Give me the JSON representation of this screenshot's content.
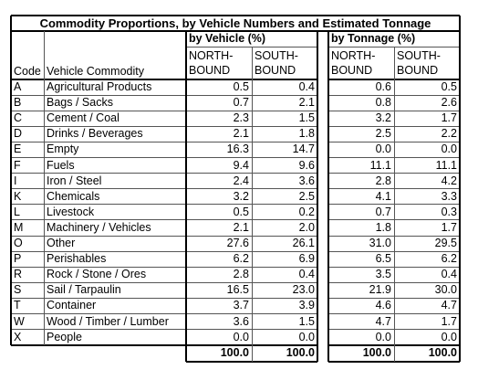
{
  "title": "Commodity Proportions, by Vehicle Numbers and Estimated Tonnage",
  "groups": {
    "vehicle": "by Vehicle (%)",
    "tonnage": "by Tonnage (%)"
  },
  "headers": {
    "code": "Code",
    "commodity": "Vehicle Commodity",
    "north_l1": "NORTH-",
    "north_l2": "BOUND",
    "south_l1": "SOUTH-",
    "south_l2": "BOUND"
  },
  "rows": [
    {
      "code": "A",
      "commodity": "Agricultural Products",
      "vn": "0.5",
      "vs": "0.4",
      "tn": "0.6",
      "ts": "0.5"
    },
    {
      "code": "B",
      "commodity": "Bags / Sacks",
      "vn": "0.7",
      "vs": "2.1",
      "tn": "0.8",
      "ts": "2.6"
    },
    {
      "code": "C",
      "commodity": "Cement / Coal",
      "vn": "2.3",
      "vs": "1.5",
      "tn": "3.2",
      "ts": "1.7"
    },
    {
      "code": "D",
      "commodity": "Drinks / Beverages",
      "vn": "2.1",
      "vs": "1.8",
      "tn": "2.5",
      "ts": "2.2"
    },
    {
      "code": "E",
      "commodity": "Empty",
      "vn": "16.3",
      "vs": "14.7",
      "tn": "0.0",
      "ts": "0.0"
    },
    {
      "code": "F",
      "commodity": "Fuels",
      "vn": "9.4",
      "vs": "9.6",
      "tn": "11.1",
      "ts": "11.1"
    },
    {
      "code": "I",
      "commodity": "Iron / Steel",
      "vn": "2.4",
      "vs": "3.6",
      "tn": "2.8",
      "ts": "4.2"
    },
    {
      "code": "K",
      "commodity": "Chemicals",
      "vn": "3.2",
      "vs": "2.5",
      "tn": "4.1",
      "ts": "3.3"
    },
    {
      "code": "L",
      "commodity": "Livestock",
      "vn": "0.5",
      "vs": "0.2",
      "tn": "0.7",
      "ts": "0.3"
    },
    {
      "code": "M",
      "commodity": "Machinery / Vehicles",
      "vn": "2.1",
      "vs": "2.0",
      "tn": "1.8",
      "ts": "1.7"
    },
    {
      "code": "O",
      "commodity": "Other",
      "vn": "27.6",
      "vs": "26.1",
      "tn": "31.0",
      "ts": "29.5"
    },
    {
      "code": "P",
      "commodity": "Perishables",
      "vn": "6.2",
      "vs": "6.9",
      "tn": "6.5",
      "ts": "6.2"
    },
    {
      "code": "R",
      "commodity": "Rock / Stone / Ores",
      "vn": "2.8",
      "vs": "0.4",
      "tn": "3.5",
      "ts": "0.4"
    },
    {
      "code": "S",
      "commodity": "Sail / Tarpaulin",
      "vn": "16.5",
      "vs": "23.0",
      "tn": "21.9",
      "ts": "30.0"
    },
    {
      "code": "T",
      "commodity": "Container",
      "vn": "3.7",
      "vs": "3.9",
      "tn": "4.6",
      "ts": "4.7"
    },
    {
      "code": "W",
      "commodity": "Wood / Timber / Lumber",
      "vn": "3.6",
      "vs": "1.5",
      "tn": "4.7",
      "ts": "1.7"
    },
    {
      "code": "X",
      "commodity": "People",
      "vn": "0.0",
      "vs": "0.0",
      "tn": "0.0",
      "ts": "0.0"
    }
  ],
  "totals": {
    "vn": "100.0",
    "vs": "100.0",
    "tn": "100.0",
    "ts": "100.0"
  }
}
